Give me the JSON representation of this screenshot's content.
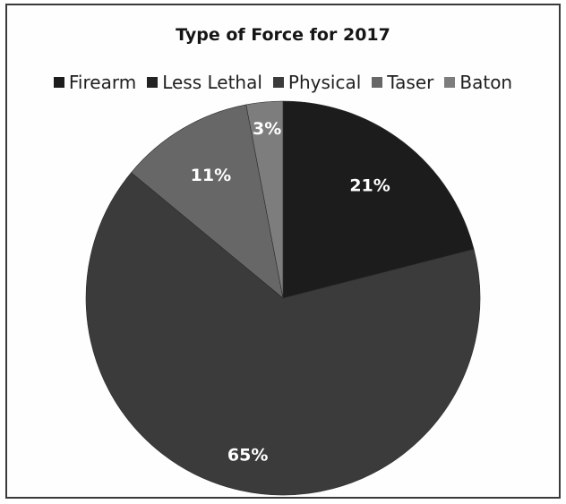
{
  "chart_data": {
    "type": "pie",
    "title": "Type of Force for 2017",
    "legend_position": "top",
    "categories": [
      "Firearm",
      "Less Lethal",
      "Physical",
      "Taser",
      "Baton"
    ],
    "values": [
      21,
      0,
      65,
      11,
      3
    ],
    "labels": [
      "21%",
      "",
      "65%",
      "11%",
      "3%"
    ],
    "colors": [
      "#1c1c1c",
      "#232323",
      "#3b3b3b",
      "#676767",
      "#7d7d7d"
    ],
    "label_colors": [
      "#ffffff",
      "#ffffff",
      "#ffffff",
      "#ffffff",
      "#ffffff"
    ]
  }
}
